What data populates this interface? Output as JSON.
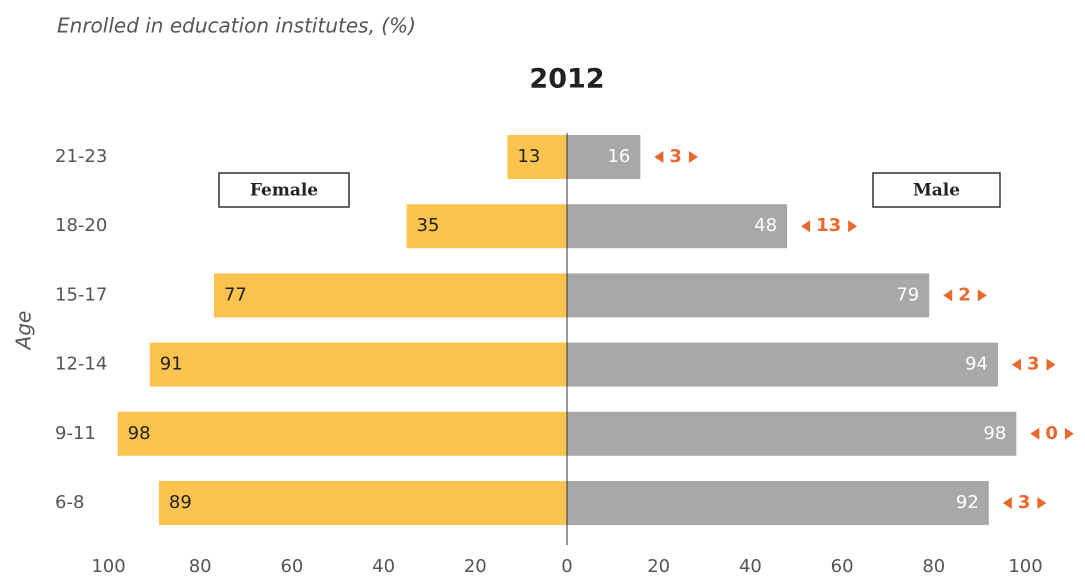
{
  "chart_data": {
    "type": "pyramid",
    "subtitle": "Enrolled in education institutes, (%)",
    "title": "2012",
    "ylabel": "Age",
    "categories": [
      "21-23",
      "18-20",
      "15-17",
      "12-14",
      "9-11",
      "6-8"
    ],
    "series": [
      {
        "name": "Female",
        "color": "#fcc44f",
        "values": [
          13,
          35,
          77,
          91,
          98,
          89
        ]
      },
      {
        "name": "Male",
        "color": "#a7a8aa",
        "values": [
          16,
          48,
          79,
          94,
          98,
          92
        ]
      }
    ],
    "differences": [
      3,
      13,
      2,
      3,
      0,
      3
    ],
    "difference_color": "#e8692d",
    "xlim": [
      0,
      100
    ],
    "xticks": [
      0,
      20,
      40,
      60,
      80,
      100
    ]
  }
}
